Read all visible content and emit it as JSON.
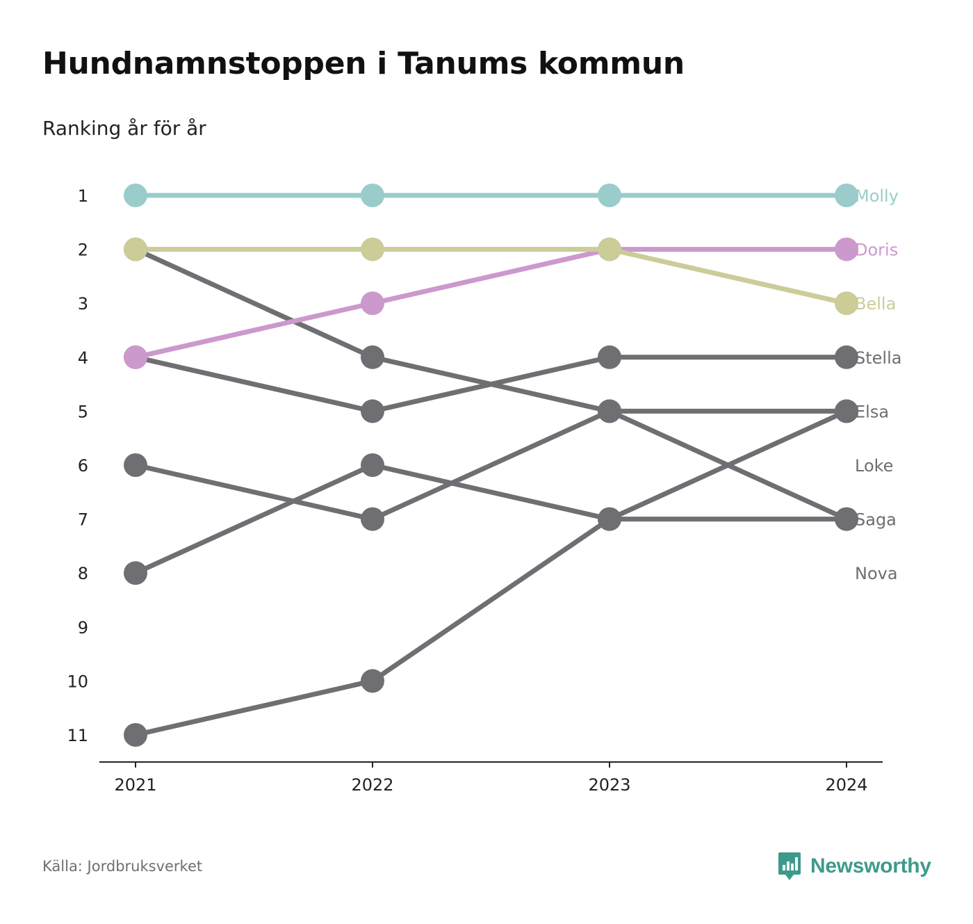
{
  "title": "Hundnamnstoppen i Tanums kommun",
  "subtitle": "Ranking år för år",
  "source": "Källa: Jordbruksverket",
  "brand": {
    "name": "Newsworthy",
    "color": "#3d9a8b",
    "icon": "bar-chart-speech-bubble-icon"
  },
  "chart_data": {
    "type": "line",
    "x": [
      "2021",
      "2022",
      "2023",
      "2024"
    ],
    "y_ticks": [
      "1",
      "2",
      "3",
      "4",
      "5",
      "6",
      "7",
      "8",
      "9",
      "10",
      "11"
    ],
    "ylim": [
      1,
      11
    ],
    "y_inverted": true,
    "grid": false,
    "series": [
      {
        "name": "Molly",
        "values": [
          1,
          1,
          1,
          1
        ],
        "color": "#99cccb"
      },
      {
        "name": "Doris",
        "values": [
          4,
          3,
          2,
          2
        ],
        "color": "#cc99cc"
      },
      {
        "name": "Bella",
        "values": [
          2,
          2,
          2,
          3
        ],
        "color": "#cccc99"
      },
      {
        "name": "Stella",
        "values": [
          8,
          6,
          7,
          7
        ],
        "color": "#6e6e73"
      },
      {
        "name": "Elsa",
        "values": [
          4,
          5,
          4,
          4
        ],
        "color": "#6e6e73"
      },
      {
        "name": "Loke",
        "values": [
          2,
          4,
          5,
          5
        ],
        "color": "#6e6e73"
      },
      {
        "name": "Saga",
        "values": [
          6,
          7,
          5,
          7
        ],
        "color": "#6e6e73"
      },
      {
        "name": "Nova",
        "values": [
          11,
          10,
          7,
          5
        ],
        "color": "#6e6e73"
      }
    ],
    "end_labels": [
      {
        "label": "Molly",
        "rank": 1,
        "color": "#99cccb"
      },
      {
        "label": "Doris",
        "rank": 2,
        "color": "#cc99cc"
      },
      {
        "label": "Bella",
        "rank": 3,
        "color": "#cccc99"
      },
      {
        "label": "Stella",
        "rank": 4,
        "color": "#6e6e73"
      },
      {
        "label": "Elsa",
        "rank": 5,
        "color": "#6e6e73"
      },
      {
        "label": "Loke",
        "rank": 6,
        "color": "#6e6e73"
      },
      {
        "label": "Saga",
        "rank": 7,
        "color": "#6e6e73"
      },
      {
        "label": "Nova",
        "rank": 8,
        "color": "#6e6e73"
      }
    ]
  }
}
